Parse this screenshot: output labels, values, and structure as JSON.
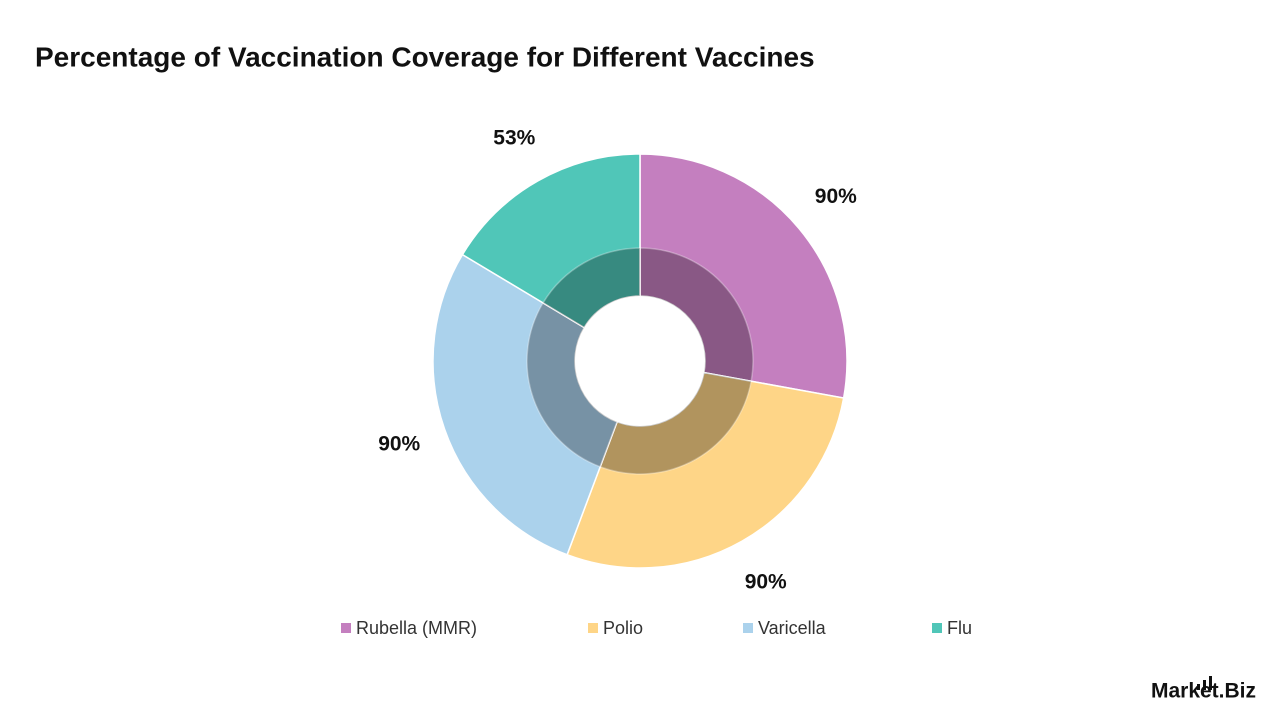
{
  "chart_data": {
    "type": "donut",
    "title": "Percentage of Vaccination Coverage for Different Vaccines",
    "categories": [
      "Rubella (MMR)",
      "Polio",
      "Varicella",
      "Flu"
    ],
    "values": [
      90,
      90,
      90,
      53
    ],
    "value_labels": [
      "90%",
      "90%",
      "90%",
      "53%"
    ],
    "colors": [
      "#c47fbf",
      "#fed587",
      "#abd2ec",
      "#50c6b8"
    ],
    "legend": "bottom"
  },
  "logo": "Market.Biz"
}
